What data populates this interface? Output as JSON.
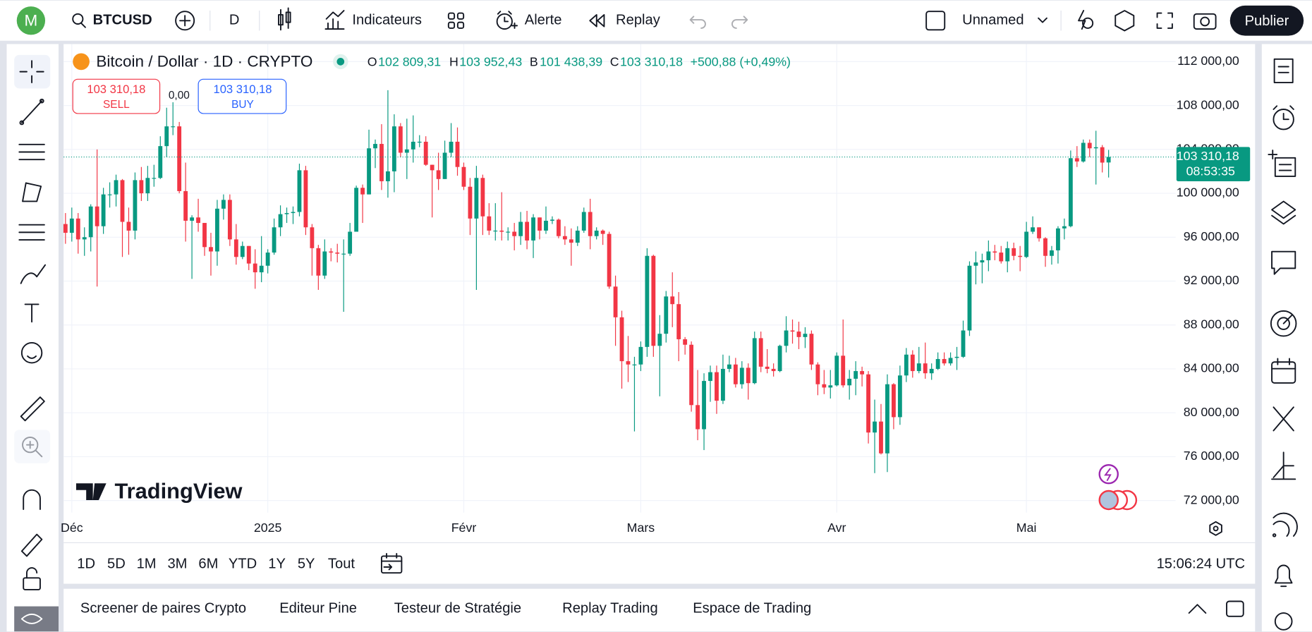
{
  "topbar": {
    "avatar": "M",
    "symbol": "BTCUSD",
    "interval": "D",
    "indicators": "Indicateurs",
    "alert": "Alerte",
    "replay": "Replay",
    "layout": "Unnamed",
    "publish": "Publier"
  },
  "legend": {
    "name": "Bitcoin / Dollar · 1D · CRYPTO",
    "o_key": "O",
    "o": "102 809,31",
    "h_key": "H",
    "h": "103 952,43",
    "b_key": "B",
    "b": "101 438,39",
    "c_key": "C",
    "c": "103 310,18",
    "change": "+500,88 (+0,49%)"
  },
  "trade": {
    "sell_price": "103 310,18",
    "sell": "SELL",
    "spread": "0,00",
    "buy_price": "103 310,18",
    "buy": "BUY"
  },
  "logo": "TradingView",
  "chart_data": {
    "type": "candlestick",
    "up_color": "#089981",
    "down_color": "#f23645",
    "grid": true,
    "ylim": [
      70900,
      113600
    ],
    "xlim": [
      -0.3,
      175.6
    ],
    "yticks": [
      {
        "value": 72000,
        "label": "72 000,00"
      },
      {
        "value": 76000,
        "label": "76 000,00"
      },
      {
        "value": 80000,
        "label": "80 000,00"
      },
      {
        "value": 84000,
        "label": "84 000,00"
      },
      {
        "value": 88000,
        "label": "88 000,00"
      },
      {
        "value": 92000,
        "label": "92 000,00"
      },
      {
        "value": 96000,
        "label": "96 000,00"
      },
      {
        "value": 100000,
        "label": "100 000,00"
      },
      {
        "value": 104000,
        "label": "104 000,00"
      },
      {
        "value": 108000,
        "label": "108 000,00"
      },
      {
        "value": 112000,
        "label": "112 000,00"
      }
    ],
    "xticks": [
      {
        "value": 1,
        "label": "Déc"
      },
      {
        "value": 32,
        "label": "2025"
      },
      {
        "value": 63,
        "label": "Févr"
      },
      {
        "value": 91,
        "label": "Mars"
      },
      {
        "value": 122,
        "label": "Avr"
      },
      {
        "value": 152,
        "label": "Mai"
      }
    ],
    "last_price": {
      "value": 103310.18,
      "label": "103 310,18",
      "countdown": "08:53:35"
    },
    "open": [
      97200,
      96400,
      97700,
      95800,
      96000,
      98800,
      97000,
      99900,
      99900,
      101200,
      97400,
      96600,
      101200,
      100000,
      101400,
      101400,
      104300,
      106100,
      106100,
      100200,
      97500,
      97800,
      97300,
      95100,
      94700,
      98600,
      99400,
      95800,
      94200,
      95200,
      93600,
      92800,
      93400,
      94600,
      96900,
      98100,
      98200,
      98300,
      102100,
      96900,
      95000,
      92500,
      94700,
      94600,
      94500,
      94500,
      96500,
      100500,
      99900,
      104100,
      104500,
      101100,
      102000,
      106100,
      103700,
      104000,
      104700,
      104700,
      102600,
      102100,
      101300,
      103700,
      104700,
      102400,
      100600,
      97700,
      101400,
      97900,
      96600,
      96600,
      96500,
      96500,
      96100,
      97400,
      95700,
      97800,
      96600,
      97500,
      97600,
      96100,
      95800,
      95500,
      96600,
      98300,
      96100,
      96600,
      96300,
      91500,
      88700,
      84700,
      84400,
      84400,
      86000,
      94300,
      86100,
      87200,
      90600,
      89900,
      86700,
      86200,
      80700,
      78500,
      82900,
      83700,
      81100,
      84000,
      84400,
      82600,
      84100,
      82700,
      86800,
      84200,
      84000,
      83800,
      86100,
      87500,
      87400,
      86900,
      87200,
      84400,
      82600,
      82300,
      82500,
      85200,
      82500,
      83100,
      83800,
      83500,
      78200,
      79200,
      76300,
      82600,
      79600,
      83400,
      85300,
      83800,
      84500,
      83600,
      84000,
      84900,
      84500,
      85000,
      85100,
      87500,
      93400,
      93700,
      93900,
      94700,
      94600,
      93800,
      95000,
      94300,
      94200,
      96500,
      96900,
      95900,
      94300,
      94800,
      96800,
      97000,
      103200,
      102900,
      104600,
      104100,
      104200,
      102809.31
    ],
    "high": [
      98200,
      98700,
      98200,
      96900,
      99000,
      104000,
      100500,
      101000,
      101700,
      101300,
      98700,
      101900,
      102400,
      102500,
      102600,
      105200,
      107800,
      108300,
      106500,
      102800,
      98000,
      99500,
      97300,
      96400,
      99400,
      99900,
      99900,
      97200,
      95600,
      95200,
      94900,
      96100,
      94900,
      97700,
      98900,
      98700,
      98800,
      102700,
      102500,
      97200,
      95300,
      95800,
      95000,
      95400,
      95800,
      97300,
      100700,
      100800,
      105800,
      104900,
      106300,
      109400,
      107200,
      106400,
      106800,
      107100,
      105300,
      105200,
      102600,
      103700,
      104800,
      106400,
      106000,
      102800,
      101400,
      102500,
      101700,
      99100,
      99100,
      100100,
      96900,
      97300,
      98300,
      98400,
      98100,
      97800,
      98800,
      97900,
      97700,
      97000,
      96800,
      97000,
      98700,
      99500,
      96900,
      96700,
      96500,
      92500,
      89300,
      87000,
      85100,
      86500,
      95000,
      94400,
      88900,
      91100,
      92800,
      91000,
      86900,
      86500,
      83900,
      83600,
      84300,
      84300,
      85300,
      85200,
      85000,
      84700,
      84500,
      87400,
      87400,
      85800,
      84500,
      86200,
      88800,
      88500,
      88300,
      87800,
      87500,
      84600,
      83900,
      83900,
      85500,
      88500,
      83900,
      84700,
      84200,
      83800,
      81200,
      80800,
      83500,
      82700,
      84300,
      85900,
      85700,
      86000,
      86400,
      84500,
      85500,
      85500,
      85500,
      86000,
      88400,
      93800,
      94700,
      94500,
      95700,
      95300,
      95200,
      95600,
      95500,
      95200,
      97400,
      97900,
      96900,
      96000,
      95200,
      97000,
      97700,
      103900,
      104300,
      104900,
      104900,
      105700,
      104400,
      103952.43
    ],
    "low": [
      95400,
      95600,
      94500,
      94300,
      94700,
      91500,
      96300,
      98700,
      98800,
      94200,
      94400,
      95800,
      99300,
      99300,
      100600,
      101300,
      103300,
      105300,
      100000,
      95600,
      92200,
      96500,
      94300,
      92500,
      93400,
      97600,
      95200,
      93500,
      94000,
      93000,
      91300,
      91900,
      92700,
      94400,
      96100,
      97300,
      97200,
      97900,
      96200,
      92500,
      91200,
      92200,
      93800,
      93700,
      89200,
      94300,
      96500,
      97300,
      99900,
      102300,
      100300,
      99600,
      100100,
      103300,
      101300,
      102800,
      104200,
      102500,
      97800,
      100300,
      101300,
      103300,
      101600,
      100300,
      96200,
      91200,
      96200,
      96200,
      95700,
      95700,
      95700,
      94800,
      95300,
      94900,
      94100,
      95800,
      96300,
      97200,
      95900,
      95300,
      93400,
      95200,
      96400,
      94900,
      95800,
      95300,
      91300,
      86100,
      82200,
      82800,
      78300,
      83800,
      85100,
      85100,
      81500,
      86400,
      87800,
      84700,
      85300,
      80100,
      77500,
      76600,
      81000,
      79900,
      80800,
      83700,
      82300,
      82200,
      81200,
      82600,
      83700,
      83600,
      83300,
      83700,
      85500,
      86300,
      85800,
      85900,
      83900,
      81600,
      81700,
      81300,
      82400,
      82300,
      81200,
      81600,
      82400,
      77200,
      74500,
      76200,
      74600,
      78500,
      78900,
      82800,
      83200,
      83600,
      83100,
      83000,
      83900,
      84300,
      84300,
      83900,
      85000,
      87000,
      91700,
      91800,
      92900,
      93900,
      93600,
      92800,
      93900,
      92900,
      94100,
      96300,
      95600,
      93300,
      93500,
      93600,
      95800,
      96900,
      102400,
      102800,
      103300,
      100800,
      101900,
      101438.39
    ],
    "close": [
      96400,
      97700,
      95800,
      96000,
      98800,
      97000,
      99900,
      99900,
      101200,
      97400,
      96600,
      101200,
      100000,
      101400,
      101400,
      104300,
      106100,
      106100,
      100200,
      97500,
      97800,
      97300,
      95100,
      94700,
      98600,
      99400,
      95800,
      94200,
      95200,
      93600,
      92800,
      93400,
      94600,
      96900,
      98100,
      98200,
      98300,
      102100,
      96900,
      95000,
      92500,
      94700,
      94600,
      94500,
      94500,
      96500,
      100500,
      99900,
      104100,
      104500,
      101100,
      102000,
      106100,
      103700,
      104000,
      104700,
      104700,
      102600,
      102100,
      101300,
      103700,
      104700,
      102400,
      100600,
      97700,
      101400,
      97900,
      96600,
      96600,
      96500,
      96500,
      96100,
      97400,
      95700,
      97800,
      96600,
      97500,
      97600,
      96100,
      95800,
      95500,
      96600,
      98300,
      96100,
      96600,
      96300,
      91500,
      88700,
      84700,
      84400,
      84400,
      86000,
      94300,
      86100,
      87200,
      90600,
      89900,
      86700,
      86200,
      80700,
      78500,
      82900,
      83700,
      81100,
      84000,
      84400,
      82600,
      84100,
      82700,
      86800,
      84200,
      84000,
      83800,
      86100,
      87500,
      87400,
      86900,
      87200,
      84400,
      82600,
      82300,
      82500,
      85200,
      82500,
      83100,
      83800,
      83500,
      78200,
      79200,
      76300,
      82600,
      79600,
      83400,
      85300,
      83800,
      84500,
      83600,
      84000,
      84900,
      84500,
      85000,
      85100,
      87500,
      93400,
      93700,
      93900,
      94700,
      94600,
      93800,
      95000,
      94300,
      94200,
      96500,
      96900,
      95900,
      94300,
      94800,
      96800,
      97000,
      103200,
      102900,
      104600,
      104100,
      104200,
      102800,
      103310.18
    ]
  },
  "ranges": [
    "1D",
    "5D",
    "1M",
    "3M",
    "6M",
    "YTD",
    "1Y",
    "5Y",
    "Tout"
  ],
  "clock": "15:06:24 UTC",
  "tabs": [
    "Screener de paires Crypto",
    "Editeur Pine",
    "Testeur de Stratégie",
    "Replay Trading",
    "Espace de Trading"
  ]
}
